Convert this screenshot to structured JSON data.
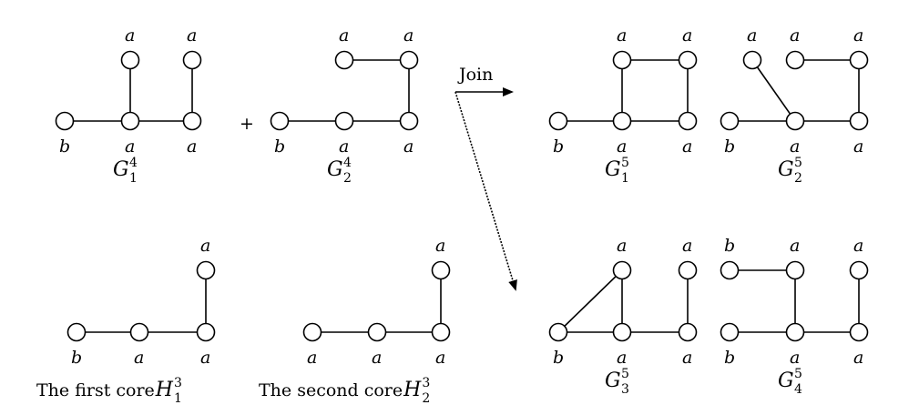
{
  "operators": {
    "plus": "+",
    "join": "Join"
  },
  "graphs": [
    {
      "id": "g1-4",
      "name": "G",
      "sup": "4",
      "sub": "1",
      "prefix": "",
      "nodes": [
        {
          "label": "a"
        },
        {
          "label": "a"
        },
        {
          "label": "b"
        },
        {
          "label": "a"
        },
        {
          "label": "a"
        }
      ]
    },
    {
      "id": "g2-4",
      "name": "G",
      "sup": "4",
      "sub": "2",
      "prefix": "",
      "nodes": [
        {
          "label": "a"
        },
        {
          "label": "a"
        },
        {
          "label": "b"
        },
        {
          "label": "a"
        },
        {
          "label": "a"
        }
      ]
    },
    {
      "id": "g1-5",
      "name": "G",
      "sup": "5",
      "sub": "1",
      "prefix": "",
      "nodes": [
        {
          "label": "a"
        },
        {
          "label": "a"
        },
        {
          "label": "b"
        },
        {
          "label": "a"
        },
        {
          "label": "a"
        }
      ]
    },
    {
      "id": "g2-5",
      "name": "G",
      "sup": "5",
      "sub": "2",
      "prefix": "",
      "nodes": [
        {
          "label": "a"
        },
        {
          "label": "a"
        },
        {
          "label": "a"
        },
        {
          "label": "b"
        },
        {
          "label": "a"
        },
        {
          "label": "a"
        }
      ]
    },
    {
      "id": "h1-3",
      "name": "H",
      "sup": "3",
      "sub": "1",
      "prefix": "The first core ",
      "nodes": [
        {
          "label": "a"
        },
        {
          "label": "b"
        },
        {
          "label": "a"
        },
        {
          "label": "a"
        }
      ]
    },
    {
      "id": "h2-3",
      "name": "H",
      "sup": "3",
      "sub": "2",
      "prefix": "The second core ",
      "nodes": [
        {
          "label": "a"
        },
        {
          "label": "a"
        },
        {
          "label": "a"
        },
        {
          "label": "a"
        }
      ]
    },
    {
      "id": "g3-5",
      "name": "G",
      "sup": "5",
      "sub": "3",
      "prefix": "",
      "nodes": [
        {
          "label": "a"
        },
        {
          "label": "a"
        },
        {
          "label": "b"
        },
        {
          "label": "a"
        },
        {
          "label": "a"
        }
      ]
    },
    {
      "id": "g4-5",
      "name": "G",
      "sup": "5",
      "sub": "4",
      "prefix": "",
      "nodes": [
        {
          "label": "b"
        },
        {
          "label": "a"
        },
        {
          "label": "a"
        },
        {
          "label": "b"
        },
        {
          "label": "a"
        },
        {
          "label": "a"
        }
      ]
    }
  ]
}
